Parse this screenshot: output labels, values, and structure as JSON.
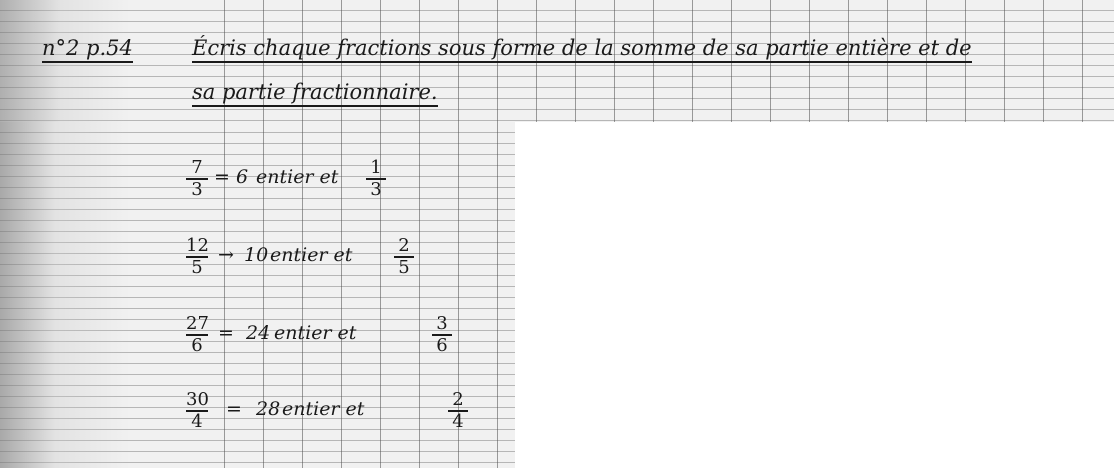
{
  "exercise": {
    "reference": "n°2 p.54",
    "instruction_line1": "Écris chaque fractions sous forme de la somme de sa partie entière et de",
    "instruction_line2": "sa partie fractionnaire."
  },
  "answers": [
    {
      "numerator": "7",
      "denominator": "3",
      "sign": "=",
      "integer": "6",
      "word": "entier et",
      "frac_num": "1",
      "frac_den": "3"
    },
    {
      "numerator": "12",
      "denominator": "5",
      "sign": "→",
      "integer": "10",
      "word": "entier et",
      "frac_num": "2",
      "frac_den": "5"
    },
    {
      "numerator": "27",
      "denominator": "6",
      "sign": "=",
      "integer": "24",
      "word": "entier et",
      "frac_num": "3",
      "frac_den": "6"
    },
    {
      "numerator": "30",
      "denominator": "4",
      "sign": "=",
      "integer": "28",
      "word": "entier et",
      "frac_num": "2",
      "frac_den": "4"
    }
  ]
}
